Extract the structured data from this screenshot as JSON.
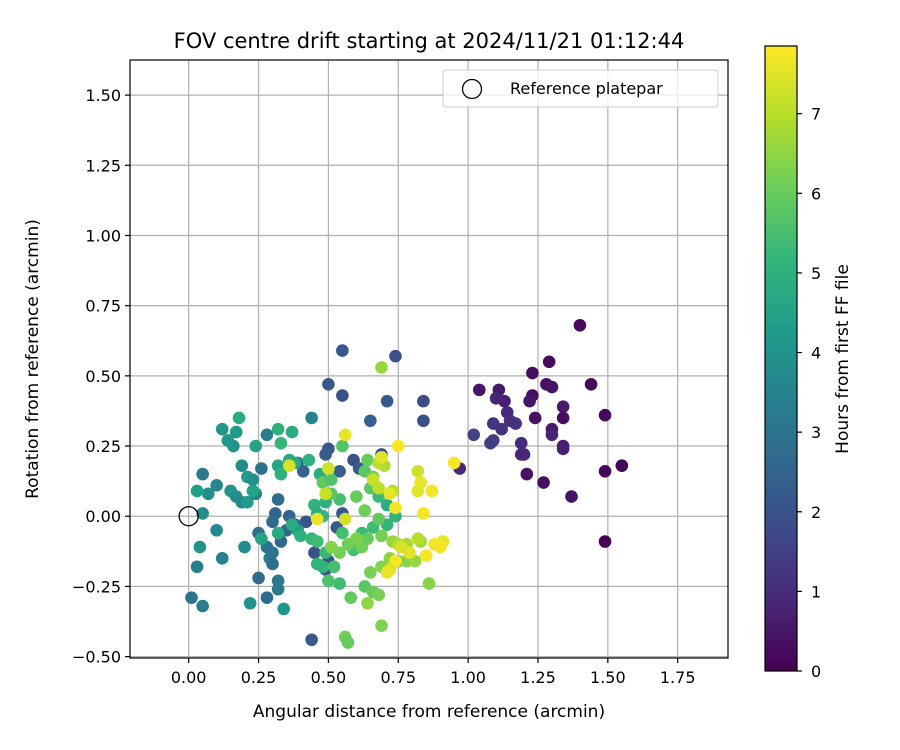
{
  "chart_data": {
    "type": "scatter",
    "title": "FOV centre drift starting at 2024/11/21 01:12:44",
    "xlabel": "Angular distance from reference (arcmin)",
    "ylabel": "Rotation from reference (arcmin)",
    "xlim": [
      -0.21,
      1.93
    ],
    "ylim": [
      -0.505,
      1.625
    ],
    "x_ticks": [
      0.0,
      0.25,
      0.5,
      0.75,
      1.0,
      1.25,
      1.5,
      1.75
    ],
    "x_tick_labels": [
      "0.00",
      "0.25",
      "0.50",
      "0.75",
      "1.00",
      "1.25",
      "1.50",
      "1.75"
    ],
    "y_ticks": [
      -0.5,
      -0.25,
      0.0,
      0.25,
      0.5,
      0.75,
      1.0,
      1.25,
      1.5
    ],
    "y_tick_labels": [
      "−0.50",
      "−0.25",
      "0.00",
      "0.25",
      "0.50",
      "0.75",
      "1.00",
      "1.25",
      "1.50"
    ],
    "grid": true,
    "legend": {
      "placement": "upper-right",
      "entries": [
        {
          "label": "Reference platepar",
          "marker": "open-circle"
        }
      ]
    },
    "reference_point": {
      "x": 0.0,
      "y": 0.0
    },
    "colorbar": {
      "label": "Hours from first FF file",
      "range": [
        0,
        7.85
      ],
      "ticks": [
        0,
        1,
        2,
        3,
        4,
        5,
        6,
        7
      ],
      "tick_labels": [
        "0",
        "1",
        "2",
        "3",
        "4",
        "5",
        "6",
        "7"
      ],
      "colormap": [
        "#440154",
        "#482878",
        "#3e4989",
        "#31688e",
        "#26828e",
        "#1f9e89",
        "#35b779",
        "#6ece58",
        "#b5de2b",
        "#fde725"
      ]
    },
    "points": [
      [
        1.4,
        0.68,
        0.15
      ],
      [
        1.29,
        0.55,
        0.2
      ],
      [
        1.23,
        0.51,
        0.3
      ],
      [
        1.44,
        0.47,
        0.25
      ],
      [
        1.28,
        0.47,
        0.35
      ],
      [
        1.3,
        0.46,
        0.4
      ],
      [
        1.04,
        0.45,
        0.5
      ],
      [
        1.11,
        0.45,
        0.55
      ],
      [
        1.23,
        0.43,
        0.3
      ],
      [
        1.22,
        0.41,
        0.45
      ],
      [
        1.13,
        0.41,
        0.7
      ],
      [
        1.1,
        0.42,
        0.8
      ],
      [
        1.34,
        0.39,
        0.6
      ],
      [
        1.49,
        0.36,
        0.2
      ],
      [
        1.14,
        0.37,
        0.9
      ],
      [
        1.15,
        0.34,
        1.0
      ],
      [
        1.24,
        0.35,
        0.35
      ],
      [
        1.34,
        0.35,
        0.25
      ],
      [
        1.17,
        0.33,
        1.1
      ],
      [
        1.09,
        0.33,
        1.3
      ],
      [
        1.12,
        0.31,
        1.2
      ],
      [
        1.3,
        0.31,
        0.6
      ],
      [
        1.3,
        0.29,
        0.8
      ],
      [
        1.08,
        0.26,
        1.4
      ],
      [
        1.09,
        0.27,
        1.5
      ],
      [
        1.19,
        0.26,
        1.0
      ],
      [
        1.34,
        0.25,
        0.6
      ],
      [
        1.34,
        0.24,
        0.7
      ],
      [
        1.19,
        0.22,
        0.9
      ],
      [
        1.2,
        0.22,
        0.8
      ],
      [
        1.55,
        0.18,
        0.1
      ],
      [
        1.49,
        0.16,
        0.15
      ],
      [
        0.97,
        0.17,
        0.9
      ],
      [
        1.21,
        0.15,
        0.4
      ],
      [
        1.27,
        0.12,
        0.3
      ],
      [
        1.37,
        0.07,
        0.4
      ],
      [
        1.49,
        -0.09,
        0.05
      ],
      [
        1.02,
        0.29,
        1.6
      ],
      [
        0.55,
        0.59,
        2.1
      ],
      [
        0.74,
        0.57,
        2.0
      ],
      [
        0.5,
        0.47,
        2.2
      ],
      [
        0.55,
        0.43,
        2.0
      ],
      [
        0.84,
        0.41,
        1.8
      ],
      [
        0.71,
        0.41,
        2.2
      ],
      [
        0.84,
        0.34,
        1.9
      ],
      [
        0.65,
        0.34,
        2.4
      ],
      [
        0.5,
        0.24,
        2.1
      ],
      [
        0.49,
        0.22,
        2.3
      ],
      [
        0.69,
        0.22,
        1.9
      ],
      [
        0.59,
        0.2,
        2.0
      ],
      [
        0.39,
        0.19,
        2.8
      ],
      [
        0.41,
        0.16,
        2.5
      ],
      [
        0.54,
        0.16,
        2.3
      ],
      [
        0.61,
        0.17,
        2.2
      ],
      [
        0.44,
        0.35,
        3.5
      ],
      [
        0.28,
        0.29,
        3.4
      ],
      [
        0.19,
        0.18,
        3.8
      ],
      [
        0.26,
        0.17,
        2.9
      ],
      [
        0.05,
        0.15,
        3.2
      ],
      [
        0.1,
        0.11,
        3.6
      ],
      [
        0.24,
        0.08,
        3.5
      ],
      [
        0.07,
        0.08,
        3.9
      ],
      [
        0.15,
        0.09,
        4.0
      ],
      [
        0.17,
        0.07,
        3.9
      ],
      [
        0.19,
        0.05,
        3.7
      ],
      [
        0.31,
        0.01,
        2.6
      ],
      [
        0.05,
        0.01,
        3.9
      ],
      [
        0.36,
        0.0,
        2.5
      ],
      [
        0.32,
        0.06,
        2.8
      ],
      [
        0.42,
        -0.02,
        2.1
      ],
      [
        0.47,
        0.0,
        2.3
      ],
      [
        0.55,
        0.01,
        2.2
      ],
      [
        0.3,
        -0.02,
        2.7
      ],
      [
        0.35,
        -0.05,
        2.6
      ],
      [
        0.38,
        -0.03,
        2.4
      ],
      [
        0.53,
        -0.04,
        2.2
      ],
      [
        0.29,
        -0.15,
        3.4
      ],
      [
        0.33,
        -0.09,
        2.6
      ],
      [
        0.25,
        -0.06,
        2.9
      ],
      [
        0.28,
        -0.11,
        3.1
      ],
      [
        0.2,
        -0.11,
        3.8
      ],
      [
        0.04,
        -0.11,
        4.0
      ],
      [
        0.1,
        -0.05,
        3.7
      ],
      [
        0.12,
        -0.15,
        3.5
      ],
      [
        0.3,
        -0.13,
        3.0
      ],
      [
        0.45,
        -0.13,
        2.0
      ],
      [
        0.5,
        -0.16,
        1.9
      ],
      [
        0.49,
        -0.19,
        2.1
      ],
      [
        0.3,
        -0.17,
        2.9
      ],
      [
        0.25,
        -0.22,
        2.7
      ],
      [
        0.03,
        -0.18,
        3.4
      ],
      [
        0.32,
        -0.23,
        3.1
      ],
      [
        0.32,
        -0.26,
        3.2
      ],
      [
        0.28,
        -0.29,
        2.8
      ],
      [
        0.01,
        -0.29,
        3.0
      ],
      [
        0.05,
        -0.32,
        3.3
      ],
      [
        0.22,
        -0.31,
        4.0
      ],
      [
        0.34,
        -0.33,
        4.1
      ],
      [
        0.44,
        -0.44,
        2.2
      ],
      [
        0.16,
        0.25,
        4.0
      ],
      [
        0.12,
        0.31,
        4.1
      ],
      [
        0.17,
        0.3,
        4.3
      ],
      [
        0.18,
        0.35,
        4.8
      ],
      [
        0.14,
        0.27,
        4.2
      ],
      [
        0.24,
        0.25,
        4.5
      ],
      [
        0.21,
        0.14,
        4.3
      ],
      [
        0.23,
        0.13,
        4.0
      ],
      [
        0.32,
        0.18,
        4.6
      ],
      [
        0.36,
        0.2,
        4.9
      ],
      [
        0.38,
        0.19,
        4.7
      ],
      [
        0.37,
        0.3,
        4.8
      ],
      [
        0.32,
        0.31,
        5.0
      ],
      [
        0.03,
        0.09,
        4.4
      ],
      [
        0.21,
        0.05,
        4.3
      ],
      [
        0.23,
        0.09,
        4.5
      ],
      [
        0.26,
        -0.08,
        4.6
      ],
      [
        0.32,
        -0.06,
        4.7
      ],
      [
        0.39,
        -0.05,
        4.4
      ],
      [
        0.37,
        -0.03,
        4.8
      ],
      [
        0.33,
        0.15,
        5.0
      ],
      [
        0.33,
        0.26,
        5.2
      ],
      [
        0.43,
        0.2,
        5.0
      ],
      [
        0.47,
        0.15,
        4.9
      ],
      [
        0.45,
        0.04,
        5.1
      ],
      [
        0.49,
        0.05,
        5.0
      ],
      [
        0.46,
        0.01,
        4.8
      ],
      [
        0.48,
        0.0,
        5.2
      ],
      [
        0.4,
        -0.07,
        5.0
      ],
      [
        0.44,
        -0.08,
        5.2
      ],
      [
        0.46,
        -0.09,
        5.4
      ],
      [
        0.49,
        -0.13,
        5.3
      ],
      [
        0.48,
        -0.18,
        5.2
      ],
      [
        0.52,
        -0.18,
        5.5
      ],
      [
        0.46,
        -0.17,
        5.1
      ],
      [
        0.54,
        -0.24,
        5.4
      ],
      [
        0.5,
        -0.23,
        5.6
      ],
      [
        0.55,
        -0.06,
        5.5
      ],
      [
        0.59,
        -0.12,
        5.5
      ],
      [
        0.62,
        -0.06,
        5.3
      ],
      [
        0.66,
        -0.04,
        5.4
      ],
      [
        0.71,
        -0.03,
        5.2
      ],
      [
        0.74,
        0.0,
        5.1
      ],
      [
        0.71,
        0.04,
        4.9
      ],
      [
        0.68,
        0.07,
        5.3
      ],
      [
        0.54,
        0.06,
        5.5
      ],
      [
        0.51,
        0.08,
        5.8
      ],
      [
        0.48,
        0.12,
        5.9
      ],
      [
        0.51,
        0.13,
        5.6
      ],
      [
        0.55,
        0.25,
        5.7
      ],
      [
        0.63,
        0.16,
        5.8
      ],
      [
        0.64,
        0.2,
        6.0
      ],
      [
        0.66,
        0.14,
        6.1
      ],
      [
        0.65,
        0.1,
        5.8
      ],
      [
        0.6,
        0.07,
        6.0
      ],
      [
        0.63,
        0.02,
        6.1
      ],
      [
        0.68,
        -0.01,
        5.9
      ],
      [
        0.69,
        -0.07,
        6.2
      ],
      [
        0.64,
        -0.08,
        6.0
      ],
      [
        0.62,
        -0.11,
        6.1
      ],
      [
        0.6,
        -0.08,
        6.3
      ],
      [
        0.57,
        -0.1,
        6.1
      ],
      [
        0.51,
        -0.11,
        6.4
      ],
      [
        0.54,
        -0.13,
        6.2
      ],
      [
        0.65,
        -0.2,
        6.2
      ],
      [
        0.69,
        -0.18,
        6.4
      ],
      [
        0.72,
        -0.15,
        6.5
      ],
      [
        0.75,
        -0.16,
        6.2
      ],
      [
        0.78,
        -0.16,
        6.4
      ],
      [
        0.71,
        -0.2,
        6.5
      ],
      [
        0.63,
        -0.25,
        5.8
      ],
      [
        0.66,
        -0.27,
        6.0
      ],
      [
        0.68,
        -0.28,
        6.2
      ],
      [
        0.58,
        -0.29,
        5.9
      ],
      [
        0.64,
        -0.31,
        6.5
      ],
      [
        0.69,
        -0.39,
        6.3
      ],
      [
        0.56,
        -0.43,
        6.1
      ],
      [
        0.57,
        -0.45,
        6.0
      ],
      [
        0.86,
        -0.24,
        6.4
      ],
      [
        0.81,
        -0.16,
        6.6
      ],
      [
        0.83,
        -0.09,
        6.7
      ],
      [
        0.73,
        -0.09,
        6.6
      ],
      [
        0.78,
        -0.1,
        6.8
      ],
      [
        0.75,
        -0.1,
        6.9
      ],
      [
        0.82,
        -0.08,
        7.0
      ],
      [
        0.69,
        0.53,
        6.6
      ],
      [
        0.7,
        0.18,
        6.9
      ],
      [
        0.68,
        0.19,
        7.0
      ],
      [
        0.66,
        0.13,
        7.2
      ],
      [
        0.68,
        0.1,
        7.1
      ],
      [
        0.73,
        0.09,
        7.0
      ],
      [
        0.5,
        0.17,
        7.3
      ],
      [
        0.49,
        0.08,
        7.2
      ],
      [
        0.56,
        -0.01,
        7.3
      ],
      [
        0.46,
        -0.01,
        7.6
      ],
      [
        0.36,
        0.18,
        7.4
      ],
      [
        0.56,
        0.29,
        7.6
      ],
      [
        0.75,
        0.25,
        7.8
      ],
      [
        0.69,
        0.21,
        7.5
      ],
      [
        0.82,
        0.16,
        7.3
      ],
      [
        0.83,
        0.12,
        7.6
      ],
      [
        0.82,
        0.09,
        7.5
      ],
      [
        0.87,
        0.09,
        7.7
      ],
      [
        0.72,
        0.08,
        7.6
      ],
      [
        0.74,
        0.03,
        7.7
      ],
      [
        0.84,
        0.01,
        7.8
      ],
      [
        0.95,
        0.19,
        7.8
      ],
      [
        0.88,
        -0.1,
        7.7
      ],
      [
        0.91,
        -0.09,
        7.6
      ],
      [
        0.85,
        -0.14,
        7.8
      ],
      [
        0.79,
        -0.13,
        7.5
      ],
      [
        0.74,
        -0.16,
        7.8
      ],
      [
        0.72,
        -0.19,
        7.5
      ],
      [
        0.71,
        -0.2,
        7.6
      ],
      [
        0.9,
        -0.11,
        7.7
      ],
      [
        0.76,
        -0.11,
        7.4
      ]
    ]
  }
}
